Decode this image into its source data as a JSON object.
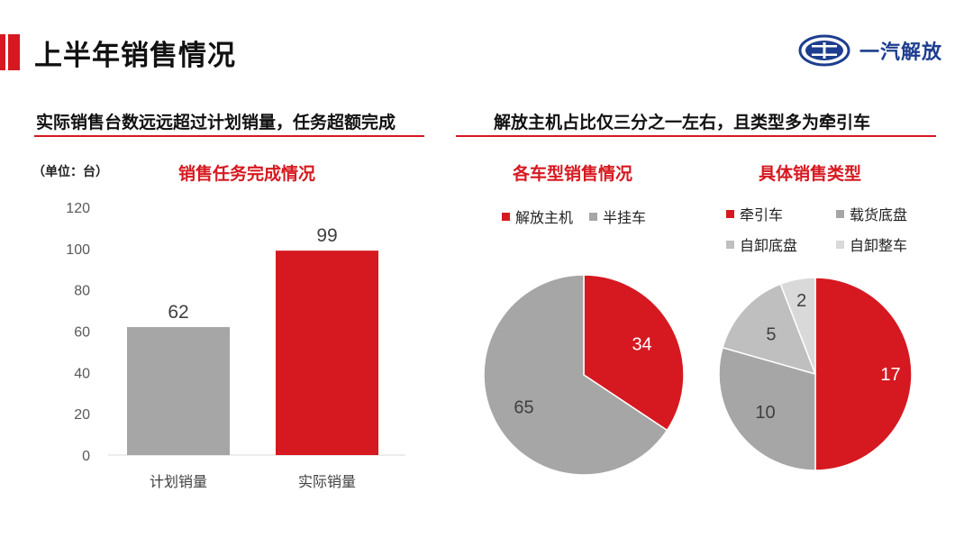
{
  "page": {
    "title": "上半年销售情况",
    "logo_text": "一汽解放"
  },
  "left_section": {
    "heading": "实际销售台数远远超过计划销量，任务超额完成",
    "unit_label": "（单位：台）"
  },
  "right_section": {
    "heading": "解放主机占比仅三分之一左右，且类型多为牵引车"
  },
  "colors": {
    "accent": "#d61920",
    "gray_dark": "#a6a6a6",
    "gray_mid": "#bfbfbf",
    "gray_light": "#d9d9d9",
    "logo_blue": "#1d3e8f"
  },
  "chart_data": [
    {
      "type": "bar",
      "title": "销售任务完成情况",
      "categories": [
        "计划销量",
        "实际销量"
      ],
      "values": [
        62,
        99
      ],
      "colors": [
        "#a6a6a6",
        "#d61920"
      ],
      "ylim": [
        0,
        120
      ],
      "yticks": [
        0,
        20,
        40,
        60,
        80,
        100,
        120
      ],
      "grid": false,
      "data_labels": true
    },
    {
      "type": "pie",
      "title": "各车型销售情况",
      "labels": [
        "解放主机",
        "半挂车"
      ],
      "values": [
        34,
        65
      ],
      "colors": [
        "#d61920",
        "#a6a6a6"
      ],
      "legend_position": "top"
    },
    {
      "type": "pie",
      "title": "具体销售类型",
      "labels": [
        "牵引车",
        "载货底盘",
        "自卸底盘",
        "自卸整车"
      ],
      "values": [
        17,
        10,
        5,
        2
      ],
      "colors": [
        "#d61920",
        "#a6a6a6",
        "#bfbfbf",
        "#d9d9d9"
      ],
      "legend_position": "top"
    }
  ]
}
